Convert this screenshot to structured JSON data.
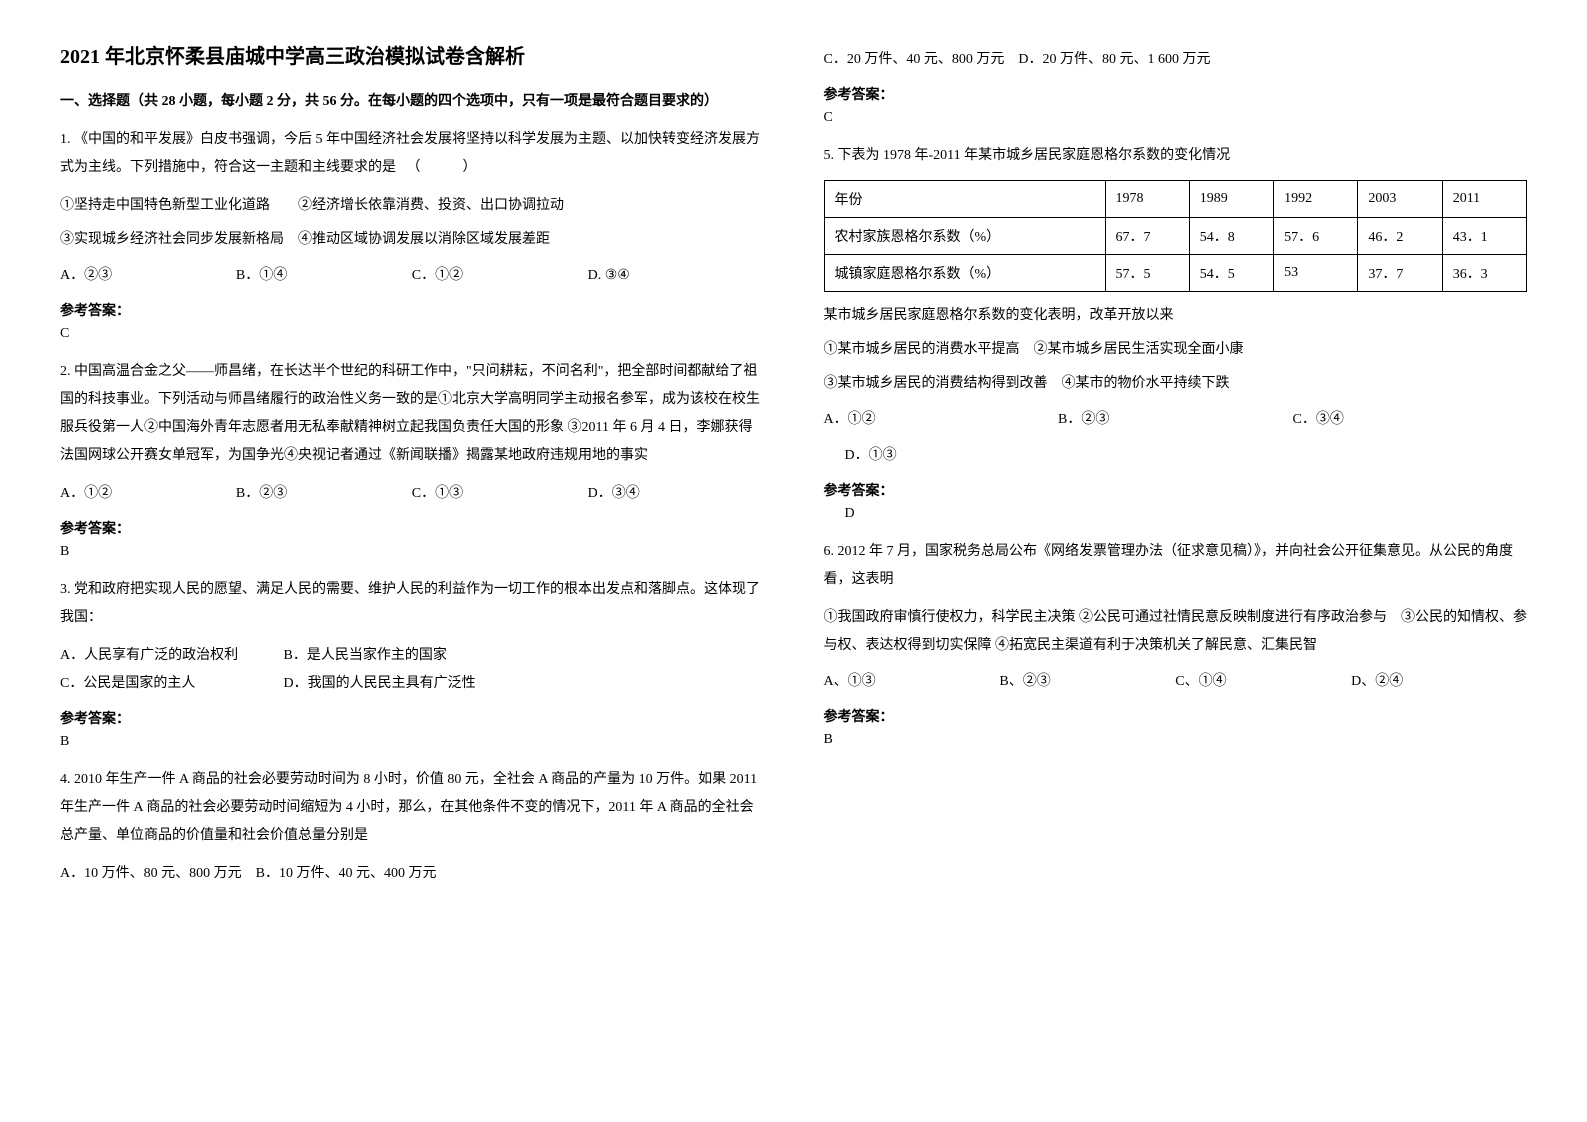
{
  "title": "2021 年北京怀柔县庙城中学高三政治模拟试卷含解析",
  "section1_header": "一、选择题（共 28 小题，每小题 2 分，共 56 分。在每小题的四个选项中，只有一项是最符合题目要求的）",
  "q1": {
    "stem": "1. 《中国的和平发展》白皮书强调，今后 5 年中国经济社会发展将坚持以科学发展为主题、以加快转变经济发展方式为主线。下列措施中，符合这一主题和主线要求的是",
    "sub1": "①坚持走中国特色新型工业化道路　　②经济增长依靠消费、投资、出口协调拉动",
    "sub2": "③实现城乡经济社会同步发展新格局　④推动区域协调发展以消除区域发展差距",
    "opts": [
      "A．②③",
      "B．①④",
      "C．①②",
      "D. ③④"
    ],
    "ans_label": "参考答案：",
    "ans": "C"
  },
  "q2": {
    "stem": "2. 中国高温合金之父——师昌绪，在长达半个世纪的科研工作中，\"只问耕耘，不问名利\"，把全部时间都献给了祖国的科技事业。下列活动与师昌绪履行的政治性义务一致的是①北京大学高明同学主动报名参军，成为该校在校生服兵役第一人②中国海外青年志愿者用无私奉献精神树立起我国负责任大国的形象 ③2011 年 6 月 4 日，李娜获得法国网球公开赛女单冠军，为国争光④央视记者通过《新闻联播》揭露某地政府违规用地的事实",
    "opts": [
      "A．①②",
      "B．②③",
      "C．①③",
      "D．③④"
    ],
    "ans_label": "参考答案：",
    "ans": "B"
  },
  "q3": {
    "stem": "3. 党和政府把实现人民的愿望、满足人民的需要、维护人民的利益作为一切工作的根本出发点和落脚点。这体现了我国：",
    "opts": [
      "A．人民享有广泛的政治权利",
      "B．是人民当家作主的国家",
      "C．公民是国家的主人",
      "D．我国的人民民主具有广泛性"
    ],
    "ans_label": "参考答案：",
    "ans": "B"
  },
  "q4": {
    "stem": "4. 2010 年生产一件 A 商品的社会必要劳动时间为 8 小时，价值 80 元，全社会 A 商品的产量为 10 万件。如果 2011 年生产一件 A 商品的社会必要劳动时间缩短为 4 小时，那么，在其他条件不变的情况下，2011 年 A 商品的全社会总产量、单位商品的价值量和社会价值总量分别是",
    "optAB": "A．10 万件、80 元、800 万元　B．10 万件、40 元、400 万元",
    "optCD": "C．20 万件、40 元、800 万元　D．20 万件、80 元、1 600 万元",
    "ans_label": "参考答案：",
    "ans": "C"
  },
  "q5": {
    "stem": "5. 下表为 1978 年-2011 年某市城乡居民家庭恩格尔系数的变化情况",
    "table": {
      "header": [
        "年份",
        "1978",
        "1989",
        "1992",
        "2003",
        "2011"
      ],
      "row1_label": "农村家族恩格尔系数（%）",
      "row1": [
        "67．7",
        "54．8",
        "57．6",
        "46．2",
        "43．1"
      ],
      "row2_label": "城镇家庭恩格尔系数（%）",
      "row2": [
        "57．5",
        "54．5",
        "53",
        "37．7",
        "36．3"
      ]
    },
    "after_table": "某市城乡居民家庭恩格尔系数的变化表明，改革开放以来",
    "sub1": "①某市城乡居民的消费水平提高　②某市城乡居民生活实现全面小康",
    "sub2": "③某市城乡居民的消费结构得到改善　④某市的物价水平持续下跌",
    "opts": [
      "A．①②",
      "B．②③",
      "C．③④",
      "D．①③"
    ],
    "ans_label": "参考答案：",
    "ans": "D"
  },
  "q6": {
    "stem": "6. 2012 年 7 月，国家税务总局公布《网络发票管理办法（征求意见稿）》，并向社会公开征集意见。从公民的角度看，这表明",
    "sub": "①我国政府审慎行使权力，科学民主决策 ②公民可通过社情民意反映制度进行有序政治参与　③公民的知情权、参与权、表达权得到切实保障 ④拓宽民主渠道有利于决策机关了解民意、汇集民智",
    "opts": [
      "A、①③",
      "B、②③",
      "C、①④",
      "D、②④"
    ],
    "ans_label": "参考答案：",
    "ans": "B"
  }
}
